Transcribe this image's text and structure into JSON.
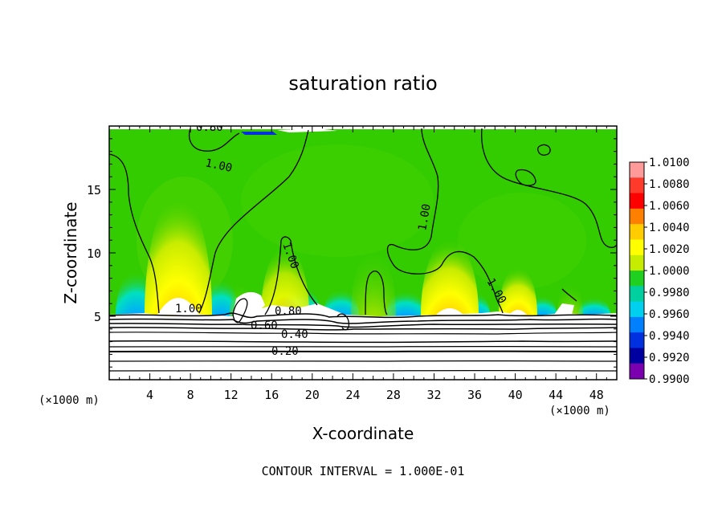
{
  "chart_data": {
    "type": "heatmap",
    "title": "saturation ratio",
    "xlabel": "X-coordinate",
    "ylabel": "Z-coordinate",
    "x_unit": "(×1000 m)",
    "xlim": [
      0,
      50
    ],
    "ylim": [
      0,
      20
    ],
    "x_ticks": [
      4,
      8,
      12,
      16,
      20,
      24,
      28,
      32,
      36,
      40,
      44,
      48
    ],
    "y_ticks": [
      5,
      10,
      15
    ],
    "colorbar": {
      "levels": [
        "1.0100",
        "1.0080",
        "1.0060",
        "1.0040",
        "1.0020",
        "1.0000",
        "0.9980",
        "0.9960",
        "0.9940",
        "0.9920",
        "0.9900"
      ],
      "colors": [
        "#ff9a9a",
        "#ff3a2a",
        "#ff0000",
        "#ff8000",
        "#ffcc00",
        "#ffff00",
        "#c8ec00",
        "#20d020",
        "#00d0a0",
        "#00d0f0",
        "#0080ff",
        "#0030e0",
        "#0000a0",
        "#7a00b0"
      ]
    },
    "contour_labels": [
      "0.80",
      "1.00",
      "1.00",
      "1.00",
      "1.00",
      "1.00",
      "0.80",
      "0.60",
      "0.40",
      "0.20"
    ],
    "footer": "CONTOUR INTERVAL = 1.000E-01",
    "field_features": {
      "cloud_base_z": 5,
      "background_value": 1.0,
      "supersaturated_plumes_x": [
        7,
        13,
        18,
        26,
        33,
        40
      ],
      "subsaturated_pockets_x": [
        3,
        11,
        19,
        22,
        29,
        36,
        43
      ]
    }
  }
}
